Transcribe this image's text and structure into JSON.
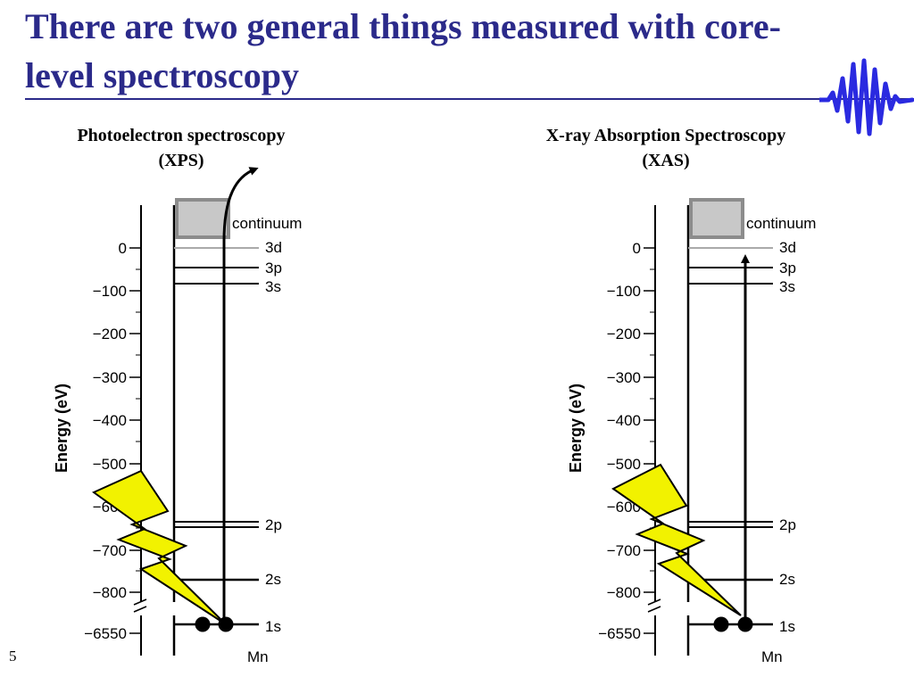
{
  "slide": {
    "title": "There are two general things measured with core-level spectroscopy",
    "page_number": "5"
  },
  "colors": {
    "title": "#2b2a8a",
    "continuum_fill": "#c8c8c8",
    "continuum_border": "#8c8c8c",
    "lightning_fill": "#f2f200",
    "logo": "#2a2ae0"
  },
  "icons": [
    "wave-packet-icon",
    "lightning-bolt-icon"
  ],
  "panels": [
    {
      "id": "xps",
      "title_line1": "Photoelectron spectroscopy",
      "title_line2": "(XPS)"
    },
    {
      "id": "xas",
      "title_line1": "X-ray Absorption Spectroscopy",
      "title_line2": "(XAS)"
    }
  ],
  "diagram": {
    "y_axis_label": "Energy (eV)",
    "y_ticks": [
      "0",
      "−100",
      "−200",
      "−300",
      "−400",
      "−500",
      "−600",
      "−700",
      "−800",
      "−6550"
    ],
    "continuum_label": "continuum",
    "levels": [
      {
        "label": "3d",
        "energy": -3
      },
      {
        "label": "3p",
        "energy": -47
      },
      {
        "label": "3s",
        "energy": -82
      },
      {
        "label": "2p",
        "energy": -640
      },
      {
        "label": "2s",
        "energy": -770
      },
      {
        "label": "1s",
        "energy": -6540
      }
    ],
    "element_label": "Mn"
  }
}
